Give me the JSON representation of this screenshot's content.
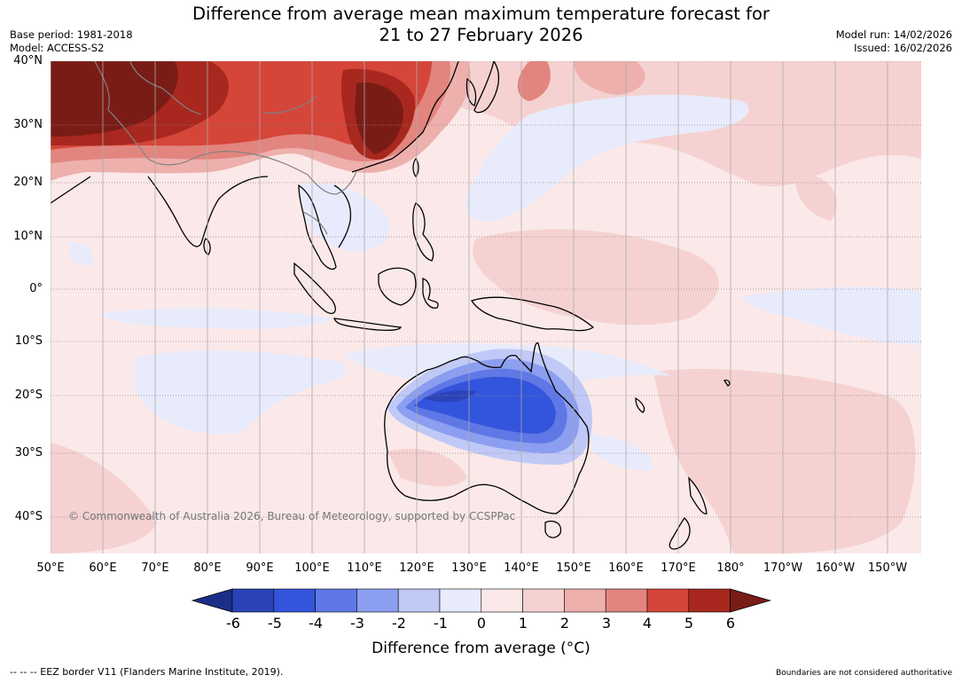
{
  "title_line1": "Difference from average mean maximum temperature forecast for",
  "title_line2": "21 to 27 February 2026",
  "base_period": "Base period: 1981-2018",
  "model": "Model: ACCESS-S2",
  "model_run": "Model run: 14/02/2026",
  "issued": "Issued: 16/02/2026",
  "copyright": "© Commonwealth of Australia 2026, Bureau of Meteorology, supported by CCSPPac",
  "lat_labels": [
    "40°N",
    "30°N",
    "20°N",
    "10°N",
    "0°",
    "10°S",
    "20°S",
    "30°S",
    "40°S"
  ],
  "lon_labels": [
    "50°E",
    "60°E",
    "70°E",
    "80°E",
    "90°E",
    "100°E",
    "110°E",
    "120°E",
    "130°E",
    "140°E",
    "150°E",
    "160°E",
    "170°E",
    "180°",
    "170°W",
    "160°W",
    "150°W"
  ],
  "colorbar": {
    "ticks": [
      "-6",
      "-5",
      "-4",
      "-3",
      "-2",
      "-1",
      "0",
      "1",
      "2",
      "3",
      "4",
      "5",
      "6"
    ],
    "colors": [
      "#1b2f8a",
      "#2a44b8",
      "#3354dc",
      "#5f78e6",
      "#8c9ef0",
      "#c0c9f6",
      "#e8ebfb",
      "#fbe9e9",
      "#f5d2d1",
      "#edb0ad",
      "#e3857f",
      "#d5453a",
      "#a8281f",
      "#7a1c16"
    ],
    "label": "Difference from average (°C)"
  },
  "footer_left": "--  --  -- EEZ border V11 (Flanders Marine Institute, 2019).",
  "footer_right": "Boundaries are not considered authoritative"
}
